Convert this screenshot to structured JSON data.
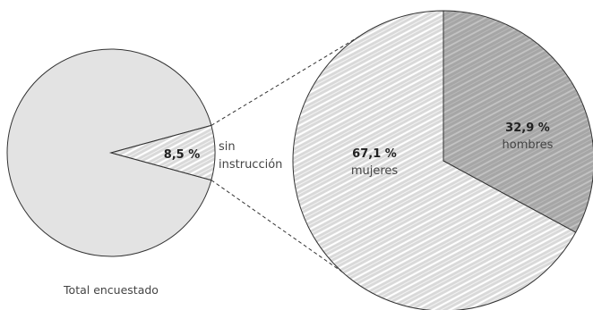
{
  "chart_data": [
    {
      "type": "pie",
      "caption": "Total encuestado",
      "slices": [
        {
          "label": "",
          "value": 91.5,
          "display": "",
          "color": "#e3e3e3"
        },
        {
          "label_lines": [
            "sin",
            "instrucción"
          ],
          "value": 8.5,
          "display": "8,5 %",
          "color": "#cfcfcf",
          "pattern": "hatch-light"
        }
      ]
    },
    {
      "type": "pie",
      "slices": [
        {
          "label": "mujeres",
          "value": 67.1,
          "display": "67,1 %",
          "color": "#d6d6d6",
          "pattern": "hatch-light"
        },
        {
          "label": "hombres",
          "value": 32.9,
          "display": "32,9 %",
          "color": "#a9a9a9",
          "pattern": "hatch-dark"
        }
      ]
    }
  ]
}
